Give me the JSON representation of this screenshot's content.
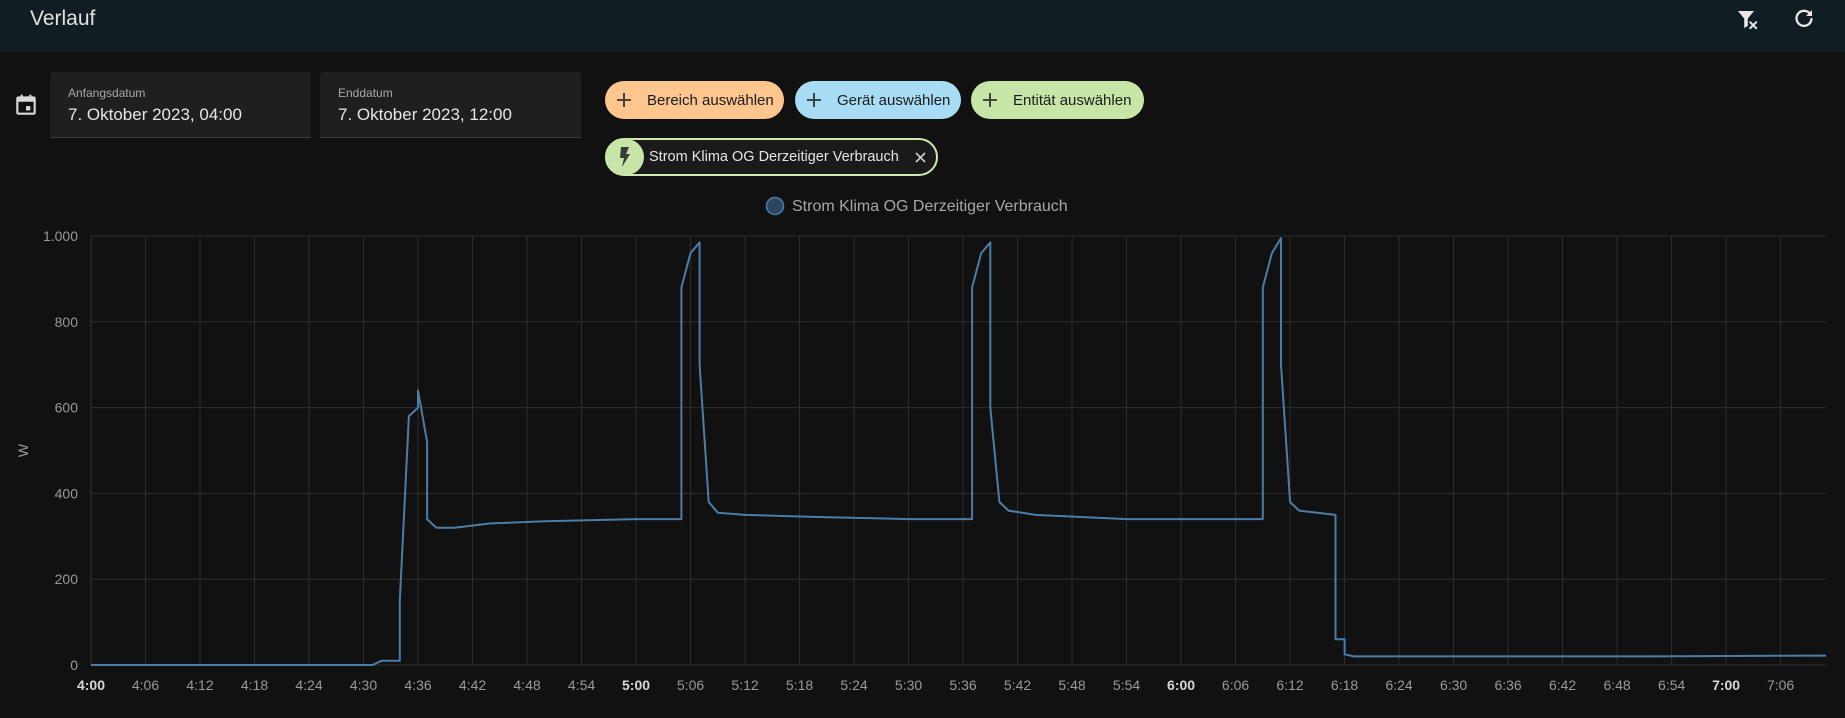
{
  "header": {
    "title": "Verlauf",
    "actions": [
      {
        "name": "clear-filter",
        "icon": "filter-remove-icon"
      },
      {
        "name": "refresh",
        "icon": "refresh-icon"
      }
    ]
  },
  "date_range": {
    "icon": "calendar-range-icon",
    "start": {
      "label": "Anfangsdatum",
      "value": "7. Oktober 2023, 04:00"
    },
    "end": {
      "label": "Enddatum",
      "value": "7. Oktober 2023, 12:00"
    }
  },
  "target_picker": {
    "area_label": "Bereich auswählen",
    "device_label": "Gerät auswählen",
    "entity_label": "Entität auswählen",
    "selected_entity": {
      "label": "Strom Klima OG Derzeitiger Verbrauch",
      "icon": "flash-icon"
    }
  },
  "colors": {
    "header_bg": "#101e24",
    "series": "#4a7ea8",
    "area_chip": "#fdc68f",
    "device_chip": "#a8dcf5",
    "entity_chip": "#c7e5a7"
  },
  "chart_data": {
    "type": "line",
    "step": true,
    "legend_position": "top-center",
    "grid": true,
    "ylabel": "W",
    "ylim": [
      0,
      1000
    ],
    "yticks": [
      0,
      200,
      400,
      600,
      800,
      1000
    ],
    "ytick_labels": [
      "0",
      "200",
      "400",
      "600",
      "800",
      "1.000"
    ],
    "xlim": [
      "4:00",
      "7:11"
    ],
    "xtick_labels": [
      "4:00",
      "4:06",
      "4:12",
      "4:18",
      "4:24",
      "4:30",
      "4:36",
      "4:42",
      "4:48",
      "4:54",
      "5:00",
      "5:06",
      "5:12",
      "5:18",
      "5:24",
      "5:30",
      "5:36",
      "5:42",
      "5:48",
      "5:54",
      "6:00",
      "6:06",
      "6:12",
      "6:18",
      "6:24",
      "6:30",
      "6:36",
      "6:42",
      "6:48",
      "6:54",
      "7:00",
      "7:06"
    ],
    "xtick_bold": [
      "4:00",
      "5:00",
      "6:00",
      "7:00"
    ],
    "series": [
      {
        "name": "Strom Klima OG Derzeitiger Verbrauch",
        "x": [
          "4:00",
          "4:31",
          "4:32",
          "4:34",
          "4:34",
          "4:35",
          "4:36",
          "4:36",
          "4:37",
          "4:37",
          "4:38",
          "4:40",
          "4:44",
          "4:50",
          "5:00",
          "5:05",
          "5:05",
          "5:06",
          "5:07",
          "5:07",
          "5:08",
          "5:09",
          "5:12",
          "5:20",
          "5:30",
          "5:37",
          "5:37",
          "5:38",
          "5:39",
          "5:39",
          "5:40",
          "5:41",
          "5:44",
          "5:54",
          "6:00",
          "6:09",
          "6:09",
          "6:10",
          "6:11",
          "6:11",
          "6:12",
          "6:13",
          "6:15",
          "6:17",
          "6:17",
          "6:18",
          "6:18",
          "6:19",
          "6:30",
          "6:50",
          "7:11"
        ],
        "y": [
          0,
          0,
          10,
          10,
          150,
          580,
          600,
          640,
          520,
          340,
          320,
          320,
          330,
          335,
          340,
          340,
          880,
          960,
          985,
          700,
          380,
          355,
          350,
          345,
          340,
          340,
          880,
          960,
          985,
          600,
          380,
          360,
          350,
          340,
          340,
          340,
          880,
          960,
          995,
          700,
          380,
          360,
          355,
          350,
          60,
          60,
          25,
          20,
          20,
          20,
          22
        ]
      }
    ]
  }
}
